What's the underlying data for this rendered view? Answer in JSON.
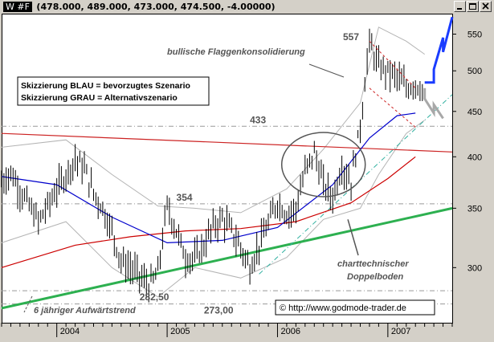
{
  "window": {
    "symbol": "W #F",
    "ohlc": "(478.000, 489.000, 473.000, 474.500, -4.00000)"
  },
  "colors": {
    "plot_bg": "#ffffff",
    "window_bg": "#d4d0c8",
    "price": "#000000",
    "bollinger": "#b4b4b4",
    "ma_short": "#0000cc",
    "ma_long": "#cc0000",
    "trend_long": "#2db050",
    "resistance": "#cc2222",
    "scenario_blue": "#1a3cff",
    "scenario_gray": "#a8a8a8",
    "guide": "#999999"
  },
  "chart_data": {
    "type": "line",
    "x_axis": {
      "labels": [
        "2004",
        "2005",
        "2006",
        "2007"
      ],
      "range": [
        "2003-07",
        "2007-08"
      ]
    },
    "y_axis": {
      "ticks": [
        300,
        350,
        400,
        450,
        500,
        550
      ],
      "range": [
        260,
        580
      ],
      "scale": "log"
    },
    "grid": false,
    "series": [
      {
        "kind": "ohlc-price",
        "points": [
          [
            "2003-07",
            375
          ],
          [
            "2003-08",
            384
          ],
          [
            "2003-09",
            367
          ],
          [
            "2003-10",
            352
          ],
          [
            "2003-11",
            338
          ],
          [
            "2003-12",
            352
          ],
          [
            "2004-01",
            368
          ],
          [
            "2004-02",
            382
          ],
          [
            "2004-03",
            398
          ],
          [
            "2004-04",
            388
          ],
          [
            "2004-05",
            364
          ],
          [
            "2004-06",
            350
          ],
          [
            "2004-07",
            330
          ],
          [
            "2004-08",
            305
          ],
          [
            "2004-09",
            300
          ],
          [
            "2004-10",
            294
          ],
          [
            "2004-11",
            286
          ],
          [
            "2004-12",
            296
          ],
          [
            "2005-01",
            352
          ],
          [
            "2005-02",
            330
          ],
          [
            "2005-03",
            308
          ],
          [
            "2005-04",
            307
          ],
          [
            "2005-05",
            318
          ],
          [
            "2005-06",
            334
          ],
          [
            "2005-07",
            341
          ],
          [
            "2005-08",
            330
          ],
          [
            "2005-09",
            316
          ],
          [
            "2005-10",
            300
          ],
          [
            "2005-11",
            318
          ],
          [
            "2005-12",
            336
          ],
          [
            "2006-01",
            356
          ],
          [
            "2006-02",
            345
          ],
          [
            "2006-03",
            350
          ],
          [
            "2006-04",
            385
          ],
          [
            "2006-05",
            405
          ],
          [
            "2006-06",
            372
          ],
          [
            "2006-07",
            360
          ],
          [
            "2006-08",
            391
          ],
          [
            "2006-09",
            375
          ],
          [
            "2006-10",
            432
          ],
          [
            "2006-11",
            538
          ],
          [
            "2006-12",
            505
          ],
          [
            "2007-01",
            500
          ],
          [
            "2007-02",
            492
          ],
          [
            "2007-03",
            478
          ],
          [
            "2007-04",
            484
          ],
          [
            "2007-05",
            474.5
          ]
        ]
      },
      {
        "kind": "moving-average",
        "points": [
          [
            "2003-07",
            380
          ],
          [
            "2004-01",
            372
          ],
          [
            "2004-07",
            342
          ],
          [
            "2005-01",
            320
          ],
          [
            "2005-07",
            322
          ],
          [
            "2006-01",
            333
          ],
          [
            "2006-07",
            372
          ],
          [
            "2006-11",
            420
          ],
          [
            "2007-02",
            445
          ],
          [
            "2007-04",
            448
          ]
        ]
      },
      {
        "kind": "moving-average-long",
        "points": [
          [
            "2003-07",
            300
          ],
          [
            "2004-03",
            318
          ],
          [
            "2004-09",
            325
          ],
          [
            "2005-03",
            330
          ],
          [
            "2005-09",
            332
          ],
          [
            "2006-03",
            338
          ],
          [
            "2006-09",
            355
          ],
          [
            "2007-01",
            378
          ],
          [
            "2007-04",
            400
          ]
        ]
      },
      {
        "kind": "bollinger-upper",
        "points": [
          [
            "2003-07",
            410
          ],
          [
            "2004-02",
            418
          ],
          [
            "2004-07",
            382
          ],
          [
            "2004-12",
            352
          ],
          [
            "2005-04",
            350
          ],
          [
            "2005-09",
            346
          ],
          [
            "2006-02",
            368
          ],
          [
            "2006-06",
            408
          ],
          [
            "2006-10",
            460
          ],
          [
            "2006-12",
            560
          ],
          [
            "2007-03",
            540
          ],
          [
            "2007-05",
            522
          ]
        ]
      },
      {
        "kind": "bollinger-lower",
        "points": [
          [
            "2003-07",
            320
          ],
          [
            "2004-02",
            338
          ],
          [
            "2004-07",
            300
          ],
          [
            "2004-12",
            278
          ],
          [
            "2005-04",
            300
          ],
          [
            "2005-09",
            292
          ],
          [
            "2006-02",
            308
          ],
          [
            "2006-06",
            340
          ],
          [
            "2006-10",
            350
          ],
          [
            "2006-12",
            382
          ],
          [
            "2007-03",
            425
          ],
          [
            "2007-05",
            440
          ]
        ]
      },
      {
        "kind": "trendline-6y",
        "points": [
          [
            "2003-07",
            270
          ],
          [
            "2007-08",
            350
          ]
        ]
      },
      {
        "kind": "resistance-line",
        "points": [
          [
            "2003-07",
            425
          ],
          [
            "2007-08",
            405
          ]
        ]
      },
      {
        "kind": "trendline-2005",
        "points": [
          [
            "2005-11",
            295
          ],
          [
            "2007-08",
            470
          ]
        ]
      },
      {
        "kind": "flag-upper",
        "points": [
          [
            "2006-11",
            540
          ],
          [
            "2007-04",
            478
          ]
        ]
      },
      {
        "kind": "flag-lower",
        "points": [
          [
            "2006-11",
            478
          ],
          [
            "2007-04",
            432
          ]
        ]
      },
      {
        "kind": "scenario-blue",
        "points": [
          [
            "2007-05",
            485
          ],
          [
            "2007-06",
            485
          ],
          [
            "2007-06",
            502
          ],
          [
            "2007-07",
            545
          ],
          [
            "2007-07",
            525
          ],
          [
            "2007-08",
            575
          ]
        ]
      },
      {
        "kind": "scenario-gray",
        "points": [
          [
            "2007-05",
            478
          ],
          [
            "2007-05",
            465
          ],
          [
            "2007-06",
            448
          ],
          [
            "2007-06",
            458
          ],
          [
            "2007-07",
            442
          ]
        ]
      }
    ],
    "levels": [
      {
        "value": 433,
        "label": "433"
      },
      {
        "value": 354,
        "label": "354"
      },
      {
        "value": 282.5,
        "label": "282,50"
      },
      {
        "value": 273,
        "label": "273,00"
      }
    ],
    "annotations": {
      "peak": "557",
      "flag": "bullische Flaggenkonsolidierung",
      "double_bottom_1": "charttechnischer",
      "double_bottom_2": "Doppelboden",
      "trend": "6 jähriger Aufwärtstrend",
      "legend_blue": "Skizzierung BLAU = bevorzugtes Szenario",
      "legend_gray": "Skizzierung GRAU = Alternativszenario",
      "copyright": "© http://www.godmode-trader.de"
    }
  }
}
